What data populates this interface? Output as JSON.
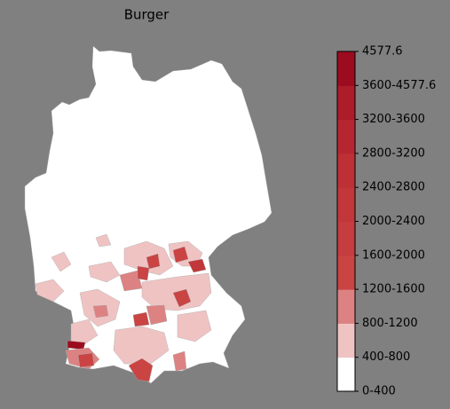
{
  "title": "Burger",
  "colorbar": {
    "labels": [
      "0-400",
      "400-800",
      "800-1200",
      "1200-1600",
      "1600-2000",
      "2000-2400",
      "2400-2800",
      "2800-3200",
      "3200-3600",
      "3600-4577.6",
      "4577.6"
    ],
    "colors": [
      "#ffffff",
      "#f0c3c3",
      "#dc8282",
      "#c94443",
      "#c53d3e",
      "#c23739",
      "#bd3035",
      "#b62630",
      "#ad1c29",
      "#9c0c1f"
    ]
  }
}
